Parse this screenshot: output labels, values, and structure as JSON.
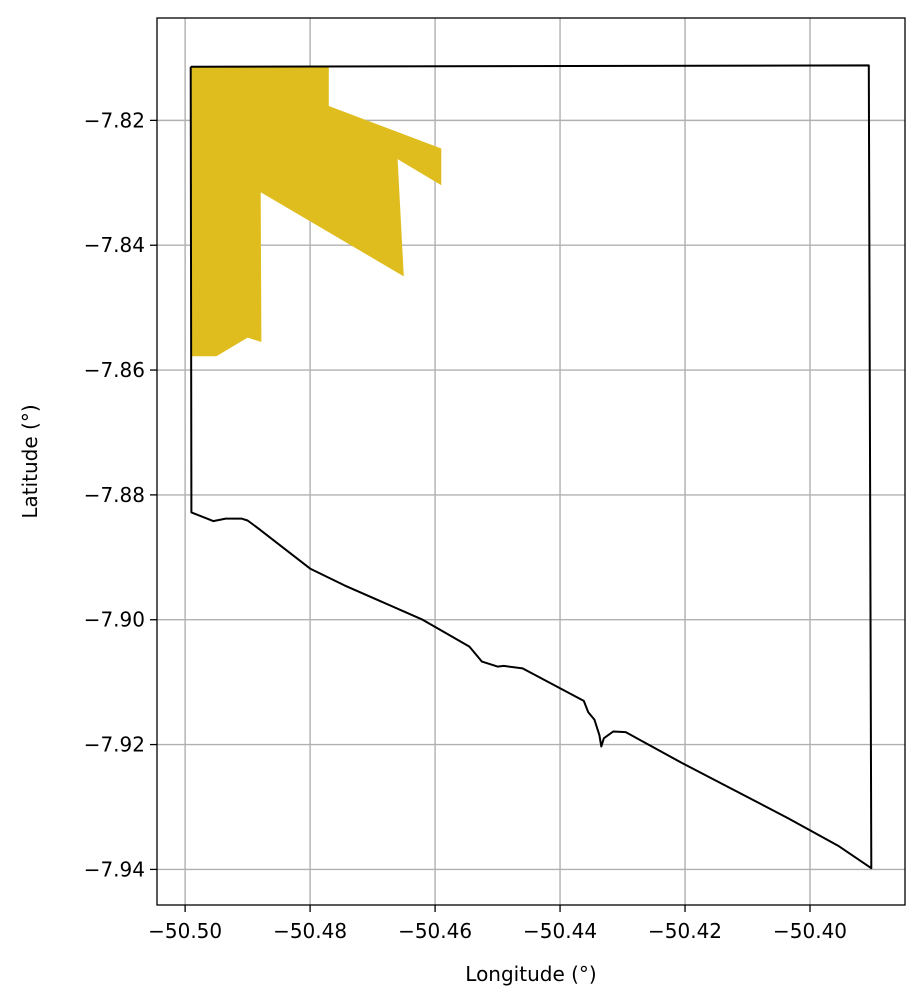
{
  "chart_data": {
    "type": "map",
    "xlabel": "Longitude (°)",
    "ylabel": "Latitude (°)",
    "xlim": [
      -50.5045,
      -50.3848
    ],
    "ylim": [
      -7.9457,
      -7.8036
    ],
    "grid": true,
    "x_ticks": [
      -50.5,
      -50.48,
      -50.46,
      -50.44,
      -50.42,
      -50.4
    ],
    "x_tick_labels": [
      "−50.50",
      "−50.48",
      "−50.46",
      "−50.44",
      "−50.42",
      "−50.40"
    ],
    "y_ticks": [
      -7.82,
      -7.84,
      -7.86,
      -7.88,
      -7.9,
      -7.92,
      -7.94
    ],
    "y_tick_labels": [
      "−7.82",
      "−7.84",
      "−7.86",
      "−7.88",
      "−7.90",
      "−7.92",
      "−7.94"
    ],
    "colors": {
      "boundary": "#000000",
      "highlight": "#e0bd1f",
      "grid": "#b0b0b0"
    },
    "boundary": [
      [
        -50.4991,
        -7.8114
      ],
      [
        -50.3906,
        -7.8112
      ],
      [
        -50.3902,
        -7.9398
      ],
      [
        -50.3955,
        -7.9362
      ],
      [
        -50.4035,
        -7.9318
      ],
      [
        -50.4204,
        -7.923
      ],
      [
        -50.4295,
        -7.918
      ],
      [
        -50.4315,
        -7.9179
      ],
      [
        -50.433,
        -7.919
      ],
      [
        -50.4334,
        -7.9203
      ],
      [
        -50.4337,
        -7.9185
      ],
      [
        -50.4345,
        -7.916
      ],
      [
        -50.4355,
        -7.9148
      ],
      [
        -50.4362,
        -7.913
      ],
      [
        -50.446,
        -7.9078
      ],
      [
        -50.449,
        -7.9074
      ],
      [
        -50.45,
        -7.9075
      ],
      [
        -50.4525,
        -7.9067
      ],
      [
        -50.4535,
        -7.9055
      ],
      [
        -50.4545,
        -7.9043
      ],
      [
        -50.462,
        -7.9
      ],
      [
        -50.4745,
        -7.8945
      ],
      [
        -50.48,
        -7.8918
      ],
      [
        -50.4885,
        -7.8852
      ],
      [
        -50.49,
        -7.8841
      ],
      [
        -50.491,
        -7.8838
      ],
      [
        -50.4935,
        -7.8838
      ],
      [
        -50.4955,
        -7.8842
      ],
      [
        -50.4965,
        -7.8838
      ],
      [
        -50.499,
        -7.8828
      ],
      [
        -50.4991,
        -7.8114
      ]
    ],
    "highlight_polygons": [
      [
        [
          -50.4991,
          -7.8114
        ],
        [
          -50.477,
          -7.8114
        ],
        [
          -50.477,
          -7.8177
        ],
        [
          -50.459,
          -7.8245
        ],
        [
          -50.459,
          -7.8304
        ],
        [
          -50.466,
          -7.8262
        ],
        [
          -50.465,
          -7.845
        ],
        [
          -50.4879,
          -7.8315
        ],
        [
          -50.4878,
          -7.8555
        ],
        [
          -50.49,
          -7.8548
        ],
        [
          -50.495,
          -7.8578
        ],
        [
          -50.4991,
          -7.8578
        ]
      ]
    ]
  }
}
